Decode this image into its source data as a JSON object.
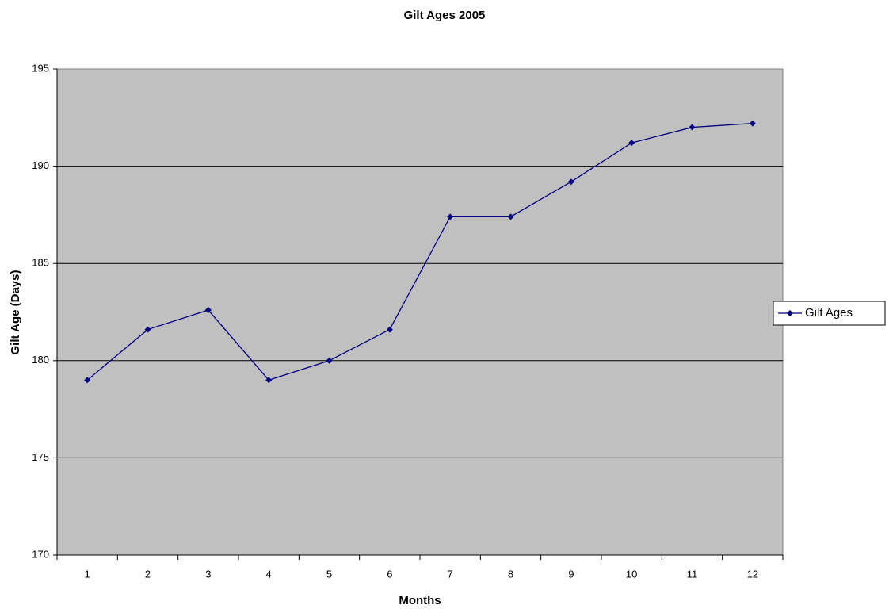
{
  "chart_data": {
    "type": "line",
    "title": "Gilt Ages 2005",
    "x_label": "Months",
    "y_label": "Gilt Age (Days)",
    "categories": [
      "1",
      "2",
      "3",
      "4",
      "5",
      "6",
      "7",
      "8",
      "9",
      "10",
      "11",
      "12"
    ],
    "series": [
      {
        "name": "Gilt Ages",
        "color": "#000080",
        "values": [
          179,
          181.6,
          182.6,
          179,
          180,
          181.6,
          187.4,
          187.4,
          189.2,
          191.2,
          192,
          192.2
        ]
      }
    ],
    "ylim": [
      170,
      195
    ],
    "yticks": [
      170,
      175,
      180,
      185,
      190,
      195
    ],
    "grid": true,
    "plot_background": "#c0c0c0",
    "legend": "right"
  }
}
